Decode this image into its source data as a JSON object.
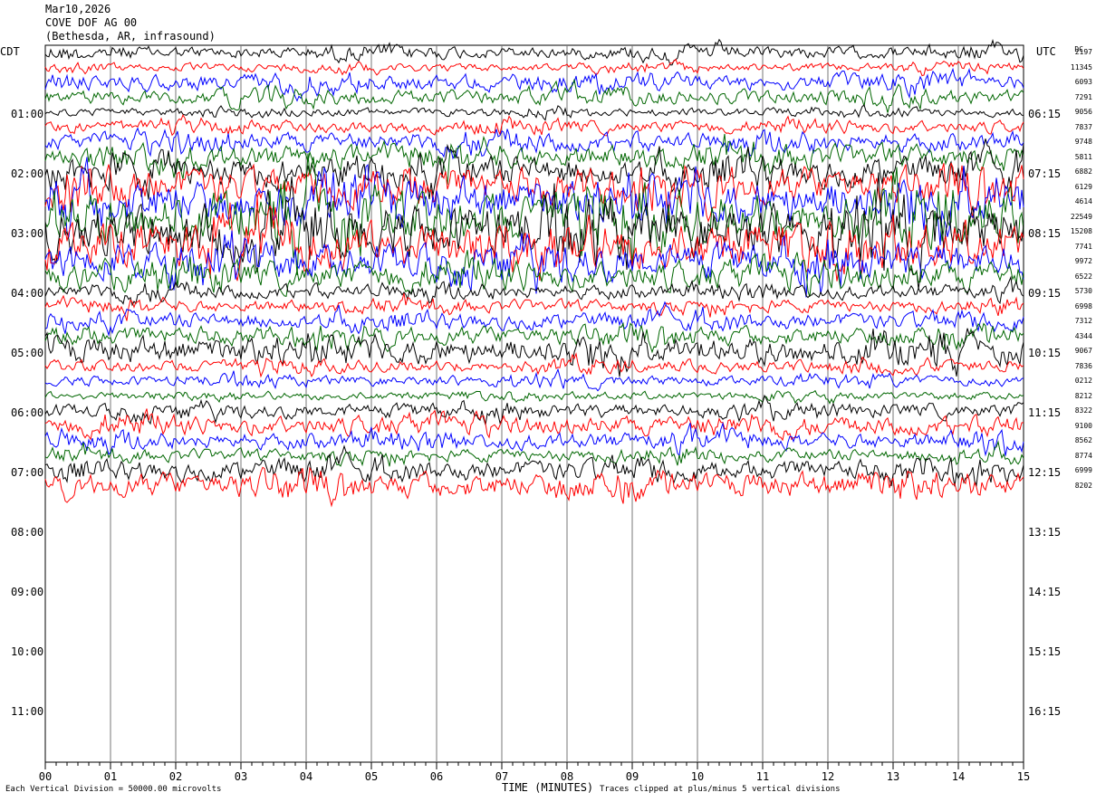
{
  "header": {
    "date": "Mar10,2026",
    "station": "COVE DOF AG 00",
    "location": "(Bethesda, AR, infrasound)"
  },
  "left_tz": "CDT",
  "right_tz": "UTC",
  "dc_header": "DC",
  "footer": {
    "scale_note": "Each Vertical Division = 50000.00 microvolts",
    "clip_note": "Traces clipped at plus/minus 5 vertical divisions",
    "xaxis_title": "TIME (MINUTES)"
  },
  "chart_data": {
    "type": "line",
    "title": "COVE DOF AG 00",
    "xlabel": "TIME (MINUTES)",
    "xlim": [
      0,
      15
    ],
    "x_ticks": [
      "00",
      "01",
      "02",
      "03",
      "04",
      "05",
      "06",
      "07",
      "08",
      "09",
      "10",
      "11",
      "12",
      "13",
      "14",
      "15"
    ],
    "left_hour_labels": [
      "01:00",
      "02:00",
      "03:00",
      "04:00",
      "05:00",
      "06:00",
      "07:00",
      "08:00",
      "09:00",
      "10:00",
      "11:00"
    ],
    "right_hour_labels": [
      "06:15",
      "07:15",
      "08:15",
      "09:15",
      "10:15",
      "11:15",
      "12:15",
      "13:15",
      "14:15",
      "15:15",
      "16:15"
    ],
    "trace_colors": [
      "#000000",
      "#ff0000",
      "#0000ff",
      "#006600"
    ],
    "trace_dc_offsets": [
      "2197",
      "11345",
      "6093",
      "7291",
      "9056",
      "7837",
      "9748",
      "5811",
      "6882",
      "6129",
      "4614",
      "22549",
      "15208",
      "7741",
      "9972",
      "6522",
      "5730",
      "6998",
      "7312",
      "4344",
      "9067",
      "7836",
      "0212",
      "8212",
      "8322",
      "9100",
      "8562",
      "8774",
      "6999",
      "8202"
    ],
    "trace_amplitude_level": [
      1.2,
      0.8,
      1.6,
      1.4,
      0.8,
      1.2,
      1.8,
      2.2,
      3.0,
      3.6,
      4.4,
      5.0,
      5.0,
      4.6,
      3.6,
      2.8,
      1.4,
      1.2,
      1.6,
      1.8,
      2.6,
      1.2,
      1.0,
      0.8,
      1.4,
      1.8,
      1.6,
      1.2,
      2.0,
      2.4
    ],
    "clip_divisions": 5,
    "units_per_division": "50000.00 microvolts",
    "grid": true
  }
}
